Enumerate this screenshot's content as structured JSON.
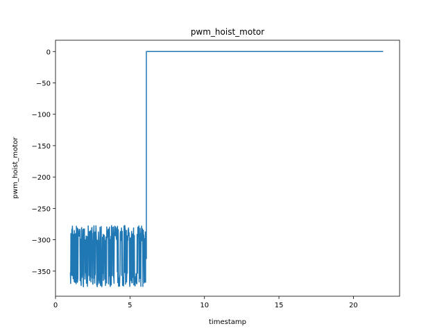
{
  "chart_data": {
    "type": "line",
    "title": "pwm_hoist_motor",
    "xlabel": "timestamp",
    "ylabel": "pwm_hoist_motor",
    "xlim": [
      0,
      23.1
    ],
    "ylim": [
      -390,
      18
    ],
    "xticks": [
      0,
      5,
      10,
      15,
      20
    ],
    "yticks": [
      0,
      -50,
      -100,
      -150,
      -200,
      -250,
      -300,
      -350
    ],
    "grid": false,
    "color": "#1f77b4",
    "series": [
      {
        "segments": [
          {
            "kind": "noise",
            "x_start": 1.0,
            "x_end": 6.05,
            "y_min": -375,
            "y_max": -277,
            "approx_points": 300
          },
          {
            "kind": "line",
            "x": [
              6.05,
              6.1,
              6.1,
              22.0
            ],
            "y": [
              -330,
              -330,
              0,
              0
            ]
          }
        ]
      }
    ]
  }
}
